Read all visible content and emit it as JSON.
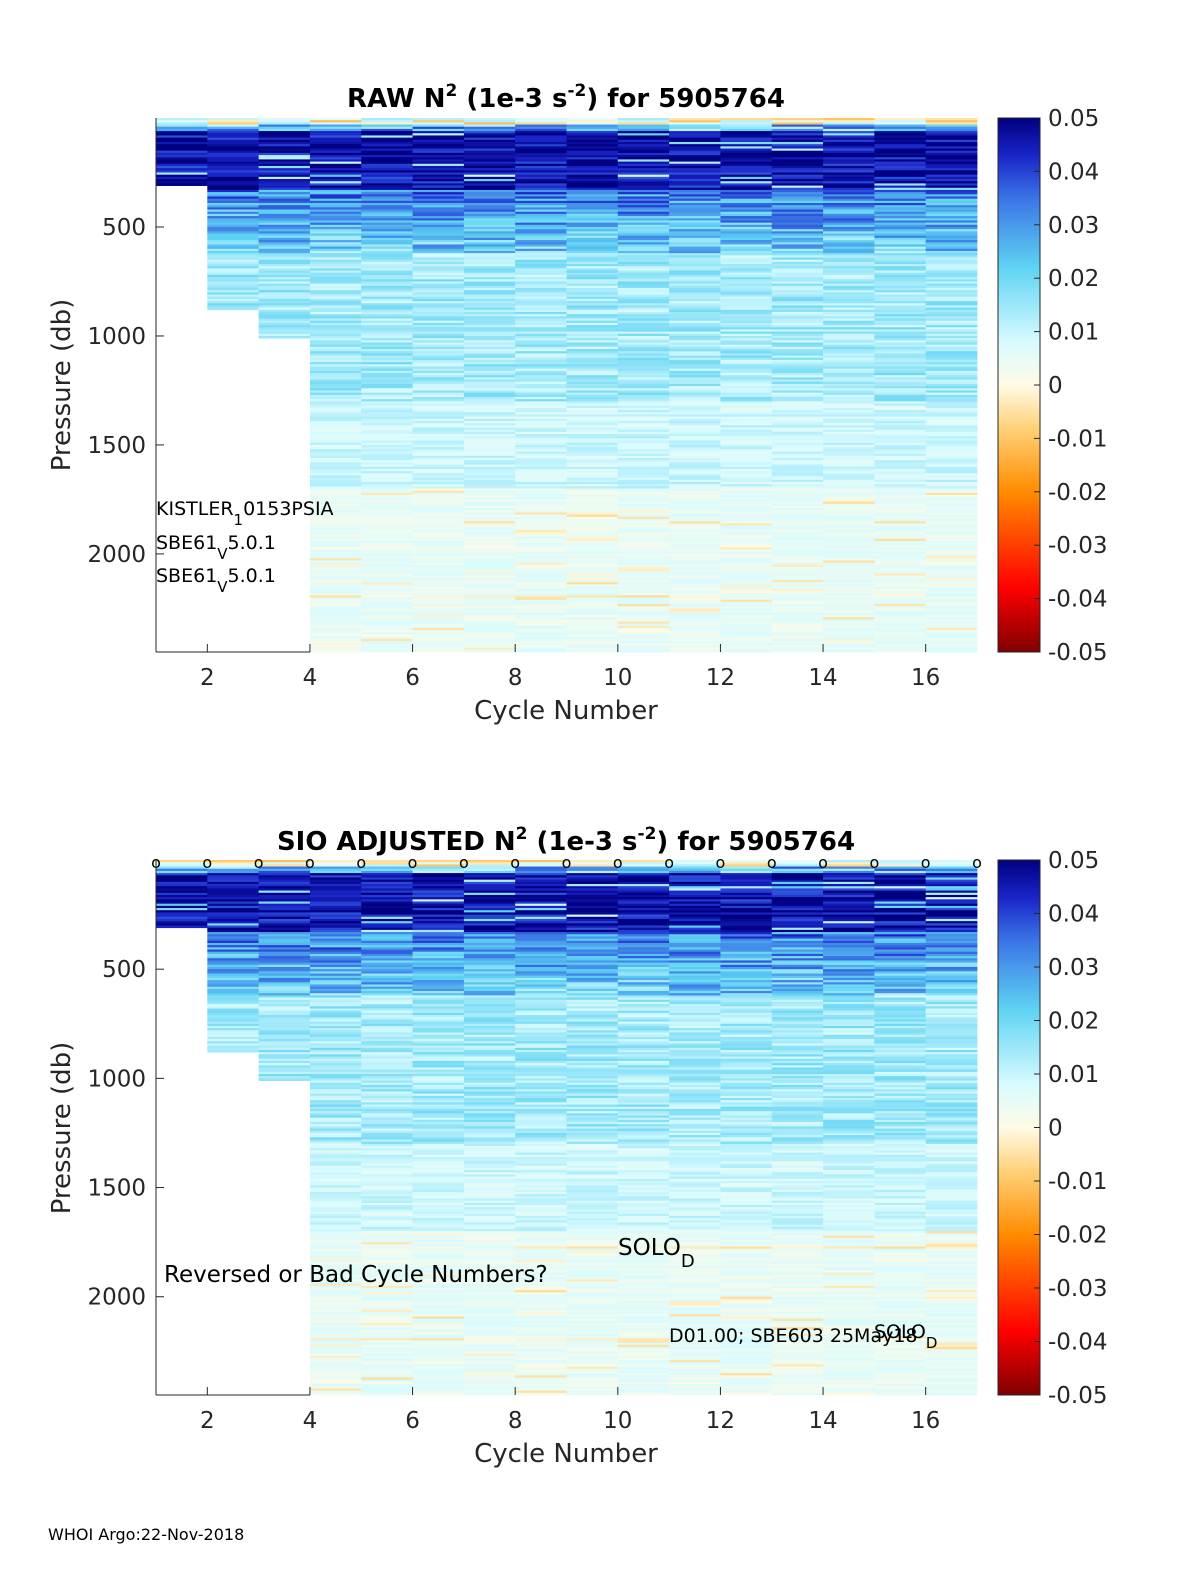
{
  "footer": "WHOI Argo:22-Nov-2018",
  "chart_data": [
    {
      "type": "heatmap",
      "title_parts": [
        "RAW N",
        "2",
        " (1e-3 s",
        "-2",
        ") for 5905764"
      ],
      "xlabel": "Cycle Number",
      "ylabel": "Pressure (db)",
      "xlim": [
        1,
        17
      ],
      "ylim": [
        2450,
        0
      ],
      "xticks": [
        2,
        4,
        6,
        8,
        10,
        12,
        14,
        16
      ],
      "yticks": [
        500,
        1000,
        1500,
        2000
      ],
      "colorbar": {
        "range": [
          -0.05,
          0.05
        ],
        "ticks": [
          "0.05",
          "0.04",
          "0.03",
          "0.02",
          "0.01",
          "0",
          "-0.01",
          "-0.02",
          "-0.03",
          "-0.04",
          "-0.05"
        ]
      },
      "cycles": [
        1,
        2,
        3,
        4,
        5,
        6,
        7,
        8,
        9,
        10,
        11,
        12,
        13,
        14,
        15,
        16
      ],
      "max_pressure": [
        310,
        880,
        1010,
        2450,
        2450,
        2450,
        2450,
        2450,
        2450,
        2450,
        2450,
        2450,
        2450,
        2450,
        2450,
        2450
      ],
      "annotations": [
        {
          "base": "KISTLER",
          "sub": "1",
          "rest": "0153PSIA"
        },
        {
          "base": "SBE61",
          "sub": "V",
          "rest": "5.0.1"
        },
        {
          "base": "SBE61",
          "sub": "V",
          "rest": "5.0.1"
        }
      ]
    },
    {
      "type": "heatmap",
      "title_parts": [
        "SIO  ADJUSTED N",
        "2",
        " (1e-3 s",
        "-2",
        ") for 5905764"
      ],
      "xlabel": "Cycle Number",
      "ylabel": "Pressure (db)",
      "xlim": [
        1,
        17
      ],
      "ylim": [
        2450,
        0
      ],
      "xticks": [
        2,
        4,
        6,
        8,
        10,
        12,
        14,
        16
      ],
      "yticks": [
        500,
        1000,
        1500,
        2000
      ],
      "colorbar": {
        "range": [
          -0.05,
          0.05
        ],
        "ticks": [
          "0.05",
          "0.04",
          "0.03",
          "0.02",
          "0.01",
          "0",
          "-0.01",
          "-0.02",
          "-0.03",
          "-0.04",
          "-0.05"
        ]
      },
      "cycles": [
        1,
        2,
        3,
        4,
        5,
        6,
        7,
        8,
        9,
        10,
        11,
        12,
        13,
        14,
        15,
        16
      ],
      "max_pressure": [
        310,
        880,
        1010,
        2450,
        2450,
        2450,
        2450,
        2450,
        2450,
        2450,
        2450,
        2450,
        2450,
        2450,
        2450,
        2450
      ],
      "marker_cycles": [
        1,
        2,
        3,
        4,
        5,
        6,
        7,
        8,
        9,
        10,
        11,
        12,
        13,
        14,
        15,
        16,
        17
      ],
      "marker_label": "o",
      "annotations": [
        {
          "text": "Reversed or Bad Cycle Numbers?"
        },
        {
          "base": "SOLO",
          "sub": "D"
        },
        {
          "text": "D01.00; SBE603 25May18"
        },
        {
          "base": "SOLO",
          "sub": "D"
        }
      ]
    }
  ]
}
